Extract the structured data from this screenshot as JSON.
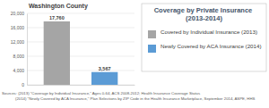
{
  "chart_data": {
    "type": "bar",
    "title": "Washington County",
    "legend_title": "Coverage by Private Insurance (2013-2014)",
    "categories": [
      null,
      null
    ],
    "series": [
      {
        "name": "Covered by Individual Insurance (2013)",
        "color": "#a5a5a5",
        "values": [
          17760,
          null
        ],
        "value_labels": [
          "17,760",
          null
        ]
      },
      {
        "name": "Newly Covered by ACA Insurance (2014)",
        "color": "#5b9bd5",
        "values": [
          null,
          3567
        ],
        "value_labels": [
          null,
          "3,567"
        ]
      }
    ],
    "ylim": [
      0,
      20000
    ],
    "yticks": [
      0,
      {
        "value": 4000,
        "label": "4,000"
      },
      {
        "value": 8000,
        "label": "8,000"
      },
      {
        "value": 12000,
        "label": "12,000"
      },
      {
        "value": 16000,
        "label": "16,000"
      },
      {
        "value": 20000,
        "label": "20,000"
      }
    ],
    "grid": true,
    "stacked": true,
    "data_labels": true,
    "legend": "right",
    "annotations": [
      "Sources: (2013) \"Coverage by Individual Insurance,\" Ages 0-64, ACS 2008-2012; Health Insurance Coverage Status",
      "(2014) \"Newly Covered by ACA Insurance,\" Plan Selections by ZIP Code in the Health Insurance Marketplace, September 2014, ASPE, HHS"
    ]
  }
}
